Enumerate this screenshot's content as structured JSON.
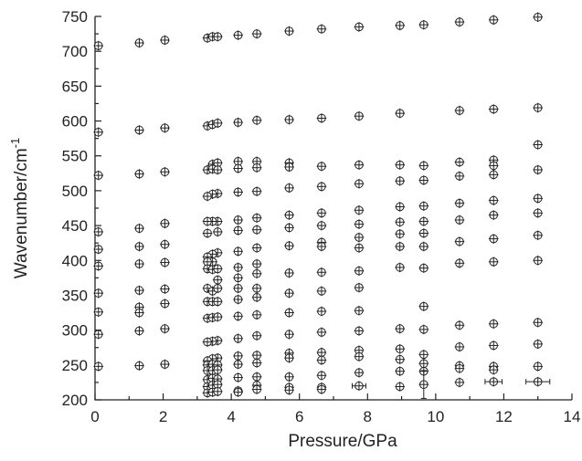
{
  "chart_data": {
    "type": "scatter",
    "xlabel": "Pressure/GPa",
    "ylabel": "Wavenumber/cm-1",
    "ylabel_main": "Wavenumber/cm",
    "ylabel_sup": "-1",
    "xlim": [
      0,
      14
    ],
    "ylim": [
      200,
      750
    ],
    "xticks": [
      0,
      2,
      4,
      6,
      8,
      10,
      12,
      14
    ],
    "yticks": [
      200,
      250,
      300,
      350,
      400,
      450,
      500,
      550,
      600,
      650,
      700,
      750
    ],
    "grid": false,
    "legend": "none",
    "marker": "open circle with error cross",
    "points": [
      {
        "x": 0.1,
        "y": 708
      },
      {
        "x": 1.3,
        "y": 712
      },
      {
        "x": 2.05,
        "y": 716
      },
      {
        "x": 3.3,
        "y": 719
      },
      {
        "x": 3.45,
        "y": 721
      },
      {
        "x": 3.6,
        "y": 721
      },
      {
        "x": 4.2,
        "y": 723
      },
      {
        "x": 4.75,
        "y": 725
      },
      {
        "x": 5.7,
        "y": 729
      },
      {
        "x": 6.65,
        "y": 732
      },
      {
        "x": 7.75,
        "y": 735
      },
      {
        "x": 8.95,
        "y": 737
      },
      {
        "x": 9.65,
        "y": 738
      },
      {
        "x": 10.7,
        "y": 742
      },
      {
        "x": 11.7,
        "y": 745
      },
      {
        "x": 13.0,
        "y": 749
      },
      {
        "x": 0.1,
        "y": 584
      },
      {
        "x": 1.3,
        "y": 587
      },
      {
        "x": 2.05,
        "y": 590
      },
      {
        "x": 3.3,
        "y": 593
      },
      {
        "x": 3.45,
        "y": 595
      },
      {
        "x": 3.6,
        "y": 597
      },
      {
        "x": 4.2,
        "y": 598
      },
      {
        "x": 4.75,
        "y": 601
      },
      {
        "x": 5.7,
        "y": 602
      },
      {
        "x": 6.65,
        "y": 604
      },
      {
        "x": 7.75,
        "y": 607
      },
      {
        "x": 8.95,
        "y": 611
      },
      {
        "x": 10.7,
        "y": 615
      },
      {
        "x": 11.7,
        "y": 617
      },
      {
        "x": 13.0,
        "y": 619
      },
      {
        "x": 13.0,
        "y": 566
      },
      {
        "x": 3.45,
        "y": 538
      },
      {
        "x": 3.6,
        "y": 540
      },
      {
        "x": 4.2,
        "y": 542
      },
      {
        "x": 4.75,
        "y": 542
      },
      {
        "x": 5.7,
        "y": 540
      },
      {
        "x": 10.7,
        "y": 541
      },
      {
        "x": 11.7,
        "y": 544
      },
      {
        "x": 0.1,
        "y": 522
      },
      {
        "x": 1.3,
        "y": 524
      },
      {
        "x": 2.05,
        "y": 527
      },
      {
        "x": 3.3,
        "y": 530
      },
      {
        "x": 3.45,
        "y": 531
      },
      {
        "x": 3.6,
        "y": 530
      },
      {
        "x": 4.2,
        "y": 532
      },
      {
        "x": 4.75,
        "y": 533
      },
      {
        "x": 5.7,
        "y": 534
      },
      {
        "x": 6.65,
        "y": 535
      },
      {
        "x": 7.75,
        "y": 537
      },
      {
        "x": 8.95,
        "y": 537
      },
      {
        "x": 9.65,
        "y": 536
      },
      {
        "x": 11.7,
        "y": 536
      },
      {
        "x": 13.0,
        "y": 530
      },
      {
        "x": 10.7,
        "y": 521
      },
      {
        "x": 11.7,
        "y": 523
      },
      {
        "x": 9.65,
        "y": 515
      },
      {
        "x": 8.95,
        "y": 514
      },
      {
        "x": 7.75,
        "y": 510
      },
      {
        "x": 6.65,
        "y": 506
      },
      {
        "x": 5.7,
        "y": 504
      },
      {
        "x": 4.75,
        "y": 499
      },
      {
        "x": 4.2,
        "y": 498
      },
      {
        "x": 3.6,
        "y": 496
      },
      {
        "x": 3.45,
        "y": 495
      },
      {
        "x": 3.3,
        "y": 492
      },
      {
        "x": 13.0,
        "y": 489
      },
      {
        "x": 11.7,
        "y": 486
      },
      {
        "x": 10.7,
        "y": 482
      },
      {
        "x": 9.65,
        "y": 478
      },
      {
        "x": 8.95,
        "y": 477
      },
      {
        "x": 7.75,
        "y": 472
      },
      {
        "x": 6.65,
        "y": 468
      },
      {
        "x": 5.7,
        "y": 465
      },
      {
        "x": 4.75,
        "y": 461
      },
      {
        "x": 4.2,
        "y": 458
      },
      {
        "x": 3.6,
        "y": 456
      },
      {
        "x": 3.45,
        "y": 456
      },
      {
        "x": 3.3,
        "y": 456
      },
      {
        "x": 2.05,
        "y": 453
      },
      {
        "x": 1.3,
        "y": 446
      },
      {
        "x": 0.1,
        "y": 441
      },
      {
        "x": 13.0,
        "y": 468
      },
      {
        "x": 11.7,
        "y": 465
      },
      {
        "x": 10.7,
        "y": 458
      },
      {
        "x": 9.65,
        "y": 456
      },
      {
        "x": 8.95,
        "y": 455
      },
      {
        "x": 7.75,
        "y": 452
      },
      {
        "x": 6.65,
        "y": 450
      },
      {
        "x": 5.7,
        "y": 447
      },
      {
        "x": 4.75,
        "y": 444
      },
      {
        "x": 4.2,
        "y": 443
      },
      {
        "x": 3.6,
        "y": 441
      },
      {
        "x": 3.3,
        "y": 439
      },
      {
        "x": 13.0,
        "y": 436
      },
      {
        "x": 11.7,
        "y": 431
      },
      {
        "x": 10.7,
        "y": 427
      },
      {
        "x": 9.65,
        "y": 439
      },
      {
        "x": 8.95,
        "y": 438
      },
      {
        "x": 7.75,
        "y": 433
      },
      {
        "x": 6.65,
        "y": 426
      },
      {
        "x": 5.7,
        "y": 421
      },
      {
        "x": 4.75,
        "y": 418
      },
      {
        "x": 4.2,
        "y": 413
      },
      {
        "x": 3.6,
        "y": 411
      },
      {
        "x": 3.45,
        "y": 409
      },
      {
        "x": 3.3,
        "y": 405
      },
      {
        "x": 2.05,
        "y": 423
      },
      {
        "x": 1.3,
        "y": 420
      },
      {
        "x": 0.1,
        "y": 416
      },
      {
        "x": 9.65,
        "y": 420
      },
      {
        "x": 8.95,
        "y": 420
      },
      {
        "x": 7.75,
        "y": 418
      },
      {
        "x": 6.65,
        "y": 420
      },
      {
        "x": 3.45,
        "y": 398
      },
      {
        "x": 3.3,
        "y": 398
      },
      {
        "x": 0.1,
        "y": 392
      },
      {
        "x": 1.3,
        "y": 395
      },
      {
        "x": 2.05,
        "y": 397
      },
      {
        "x": 3.3,
        "y": 388
      },
      {
        "x": 3.45,
        "y": 387
      },
      {
        "x": 3.6,
        "y": 388
      },
      {
        "x": 4.2,
        "y": 390
      },
      {
        "x": 4.75,
        "y": 395
      },
      {
        "x": 8.95,
        "y": 390
      },
      {
        "x": 9.65,
        "y": 389
      },
      {
        "x": 10.7,
        "y": 396
      },
      {
        "x": 11.7,
        "y": 398
      },
      {
        "x": 13.0,
        "y": 400
      },
      {
        "x": 3.6,
        "y": 372
      },
      {
        "x": 4.2,
        "y": 375
      },
      {
        "x": 4.75,
        "y": 381
      },
      {
        "x": 5.7,
        "y": 382
      },
      {
        "x": 6.65,
        "y": 383
      },
      {
        "x": 7.75,
        "y": 385
      },
      {
        "x": 0.1,
        "y": 353
      },
      {
        "x": 1.3,
        "y": 357
      },
      {
        "x": 2.05,
        "y": 359
      },
      {
        "x": 3.3,
        "y": 360
      },
      {
        "x": 3.45,
        "y": 356
      },
      {
        "x": 3.6,
        "y": 360
      },
      {
        "x": 4.2,
        "y": 360
      },
      {
        "x": 4.75,
        "y": 360
      },
      {
        "x": 5.7,
        "y": 353
      },
      {
        "x": 6.65,
        "y": 356
      },
      {
        "x": 7.75,
        "y": 361
      },
      {
        "x": 1.3,
        "y": 333
      },
      {
        "x": 1.3,
        "y": 325
      },
      {
        "x": 2.05,
        "y": 338
      },
      {
        "x": 3.3,
        "y": 341
      },
      {
        "x": 3.45,
        "y": 341
      },
      {
        "x": 3.6,
        "y": 341
      },
      {
        "x": 4.2,
        "y": 344
      },
      {
        "x": 4.75,
        "y": 347
      },
      {
        "x": 9.65,
        "y": 334
      },
      {
        "x": 0.1,
        "y": 326
      },
      {
        "x": 3.3,
        "y": 317
      },
      {
        "x": 3.45,
        "y": 318
      },
      {
        "x": 3.6,
        "y": 319
      },
      {
        "x": 4.2,
        "y": 320
      },
      {
        "x": 4.75,
        "y": 322
      },
      {
        "x": 5.7,
        "y": 325
      },
      {
        "x": 6.65,
        "y": 327
      },
      {
        "x": 7.75,
        "y": 328
      },
      {
        "x": 11.7,
        "y": 309
      },
      {
        "x": 13.0,
        "y": 311
      },
      {
        "x": 10.7,
        "y": 307
      },
      {
        "x": 9.65,
        "y": 301
      },
      {
        "x": 8.95,
        "y": 302
      },
      {
        "x": 7.75,
        "y": 299
      },
      {
        "x": 6.65,
        "y": 297
      },
      {
        "x": 5.7,
        "y": 294
      },
      {
        "x": 4.75,
        "y": 292
      },
      {
        "x": 4.2,
        "y": 288
      },
      {
        "x": 3.6,
        "y": 285
      },
      {
        "x": 3.45,
        "y": 284
      },
      {
        "x": 3.3,
        "y": 283
      },
      {
        "x": 2.05,
        "y": 302
      },
      {
        "x": 1.3,
        "y": 299
      },
      {
        "x": 0.1,
        "y": 294
      },
      {
        "x": 13.0,
        "y": 280
      },
      {
        "x": 11.7,
        "y": 278
      },
      {
        "x": 10.7,
        "y": 276
      },
      {
        "x": 8.95,
        "y": 273
      },
      {
        "x": 7.75,
        "y": 271
      },
      {
        "x": 6.65,
        "y": 268
      },
      {
        "x": 5.7,
        "y": 267
      },
      {
        "x": 4.75,
        "y": 264
      },
      {
        "x": 4.2,
        "y": 263
      },
      {
        "x": 3.6,
        "y": 260
      },
      {
        "x": 3.45,
        "y": 259
      },
      {
        "x": 3.3,
        "y": 256
      },
      {
        "x": 9.65,
        "y": 265
      },
      {
        "x": 0.1,
        "y": 248
      },
      {
        "x": 1.3,
        "y": 249
      },
      {
        "x": 2.05,
        "y": 251
      },
      {
        "x": 3.3,
        "y": 250
      },
      {
        "x": 3.45,
        "y": 251
      },
      {
        "x": 3.6,
        "y": 250
      },
      {
        "x": 4.2,
        "y": 251
      },
      {
        "x": 4.75,
        "y": 253
      },
      {
        "x": 5.7,
        "y": 260
      },
      {
        "x": 6.65,
        "y": 257
      },
      {
        "x": 7.75,
        "y": 262
      },
      {
        "x": 8.95,
        "y": 258
      },
      {
        "x": 9.65,
        "y": 252
      },
      {
        "x": 10.7,
        "y": 249
      },
      {
        "x": 11.7,
        "y": 248
      },
      {
        "x": 13.0,
        "y": 248
      },
      {
        "x": 3.3,
        "y": 242
      },
      {
        "x": 3.45,
        "y": 242
      },
      {
        "x": 3.6,
        "y": 243
      },
      {
        "x": 4.2,
        "y": 232
      },
      {
        "x": 4.75,
        "y": 233
      },
      {
        "x": 5.7,
        "y": 233
      },
      {
        "x": 6.65,
        "y": 235
      },
      {
        "x": 7.75,
        "y": 239
      },
      {
        "x": 8.95,
        "y": 241
      },
      {
        "x": 9.65,
        "y": 241
      },
      {
        "x": 10.7,
        "y": 245
      },
      {
        "x": 11.7,
        "y": 243
      },
      {
        "x": 3.3,
        "y": 229
      },
      {
        "x": 3.45,
        "y": 231
      },
      {
        "x": 3.6,
        "y": 230
      },
      {
        "x": 3.3,
        "y": 219
      },
      {
        "x": 3.45,
        "y": 221
      },
      {
        "x": 3.6,
        "y": 222
      },
      {
        "x": 4.75,
        "y": 221
      },
      {
        "x": 5.7,
        "y": 218
      },
      {
        "x": 6.65,
        "y": 218
      },
      {
        "x": 3.3,
        "y": 210
      },
      {
        "x": 3.45,
        "y": 211
      },
      {
        "x": 3.6,
        "y": 212
      },
      {
        "x": 4.2,
        "y": 213
      },
      {
        "x": 4.75,
        "y": 215
      },
      {
        "x": 5.7,
        "y": 214
      },
      {
        "x": 6.65,
        "y": 215
      },
      {
        "x": 7.75,
        "y": 220,
        "xerr": 0.2
      },
      {
        "x": 8.95,
        "y": 219
      },
      {
        "x": 9.65,
        "y": 222,
        "yerr": 20
      },
      {
        "x": 10.7,
        "y": 225
      },
      {
        "x": 11.7,
        "y": 226,
        "xerr": 0.25
      },
      {
        "x": 13.0,
        "y": 226,
        "xerr": 0.35
      },
      {
        "x": 4.2,
        "y": 211
      }
    ]
  }
}
